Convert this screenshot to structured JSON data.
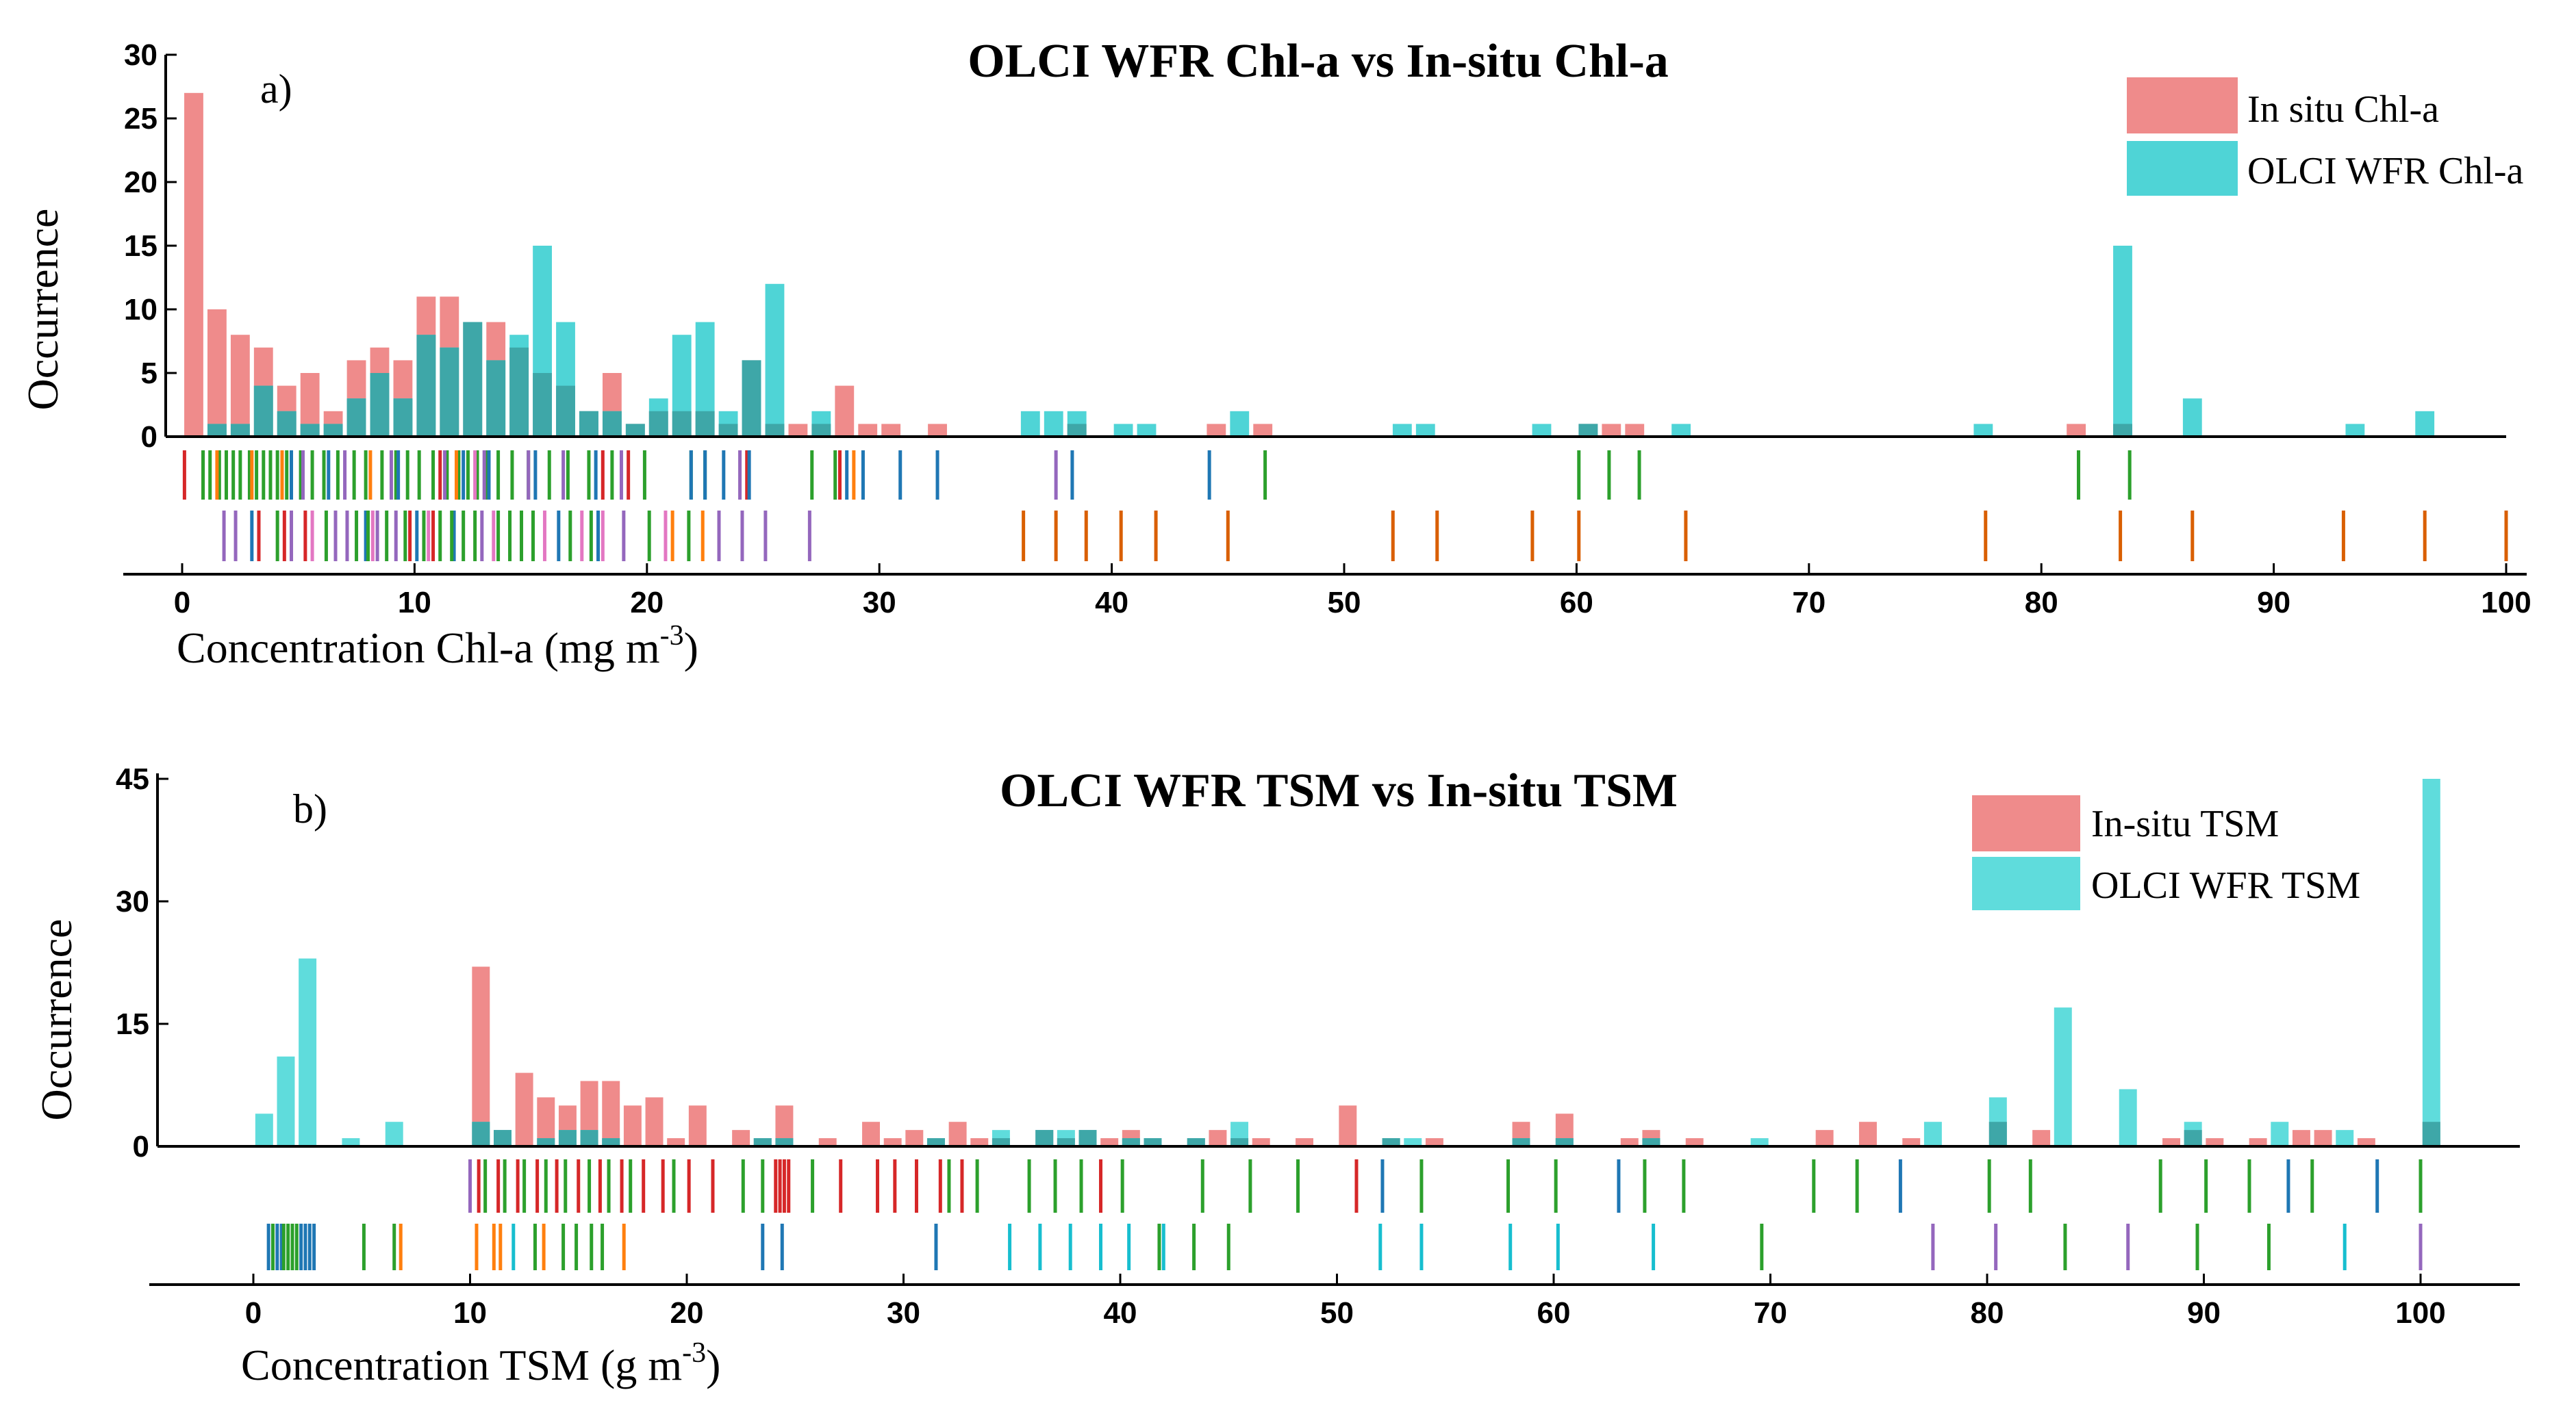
{
  "chart_data": [
    {
      "type": "bar",
      "panel": "a)",
      "title": "OLCI WFR Chl-a vs In-situ Chl-a",
      "xlabel_main": "Concentration Chl-a (mg m",
      "xlabel_sup": "-3",
      "xlabel_end": ")",
      "ylabel": "Occurrence",
      "xlim": [
        0,
        100
      ],
      "ylim": [
        0,
        30
      ],
      "xticks": [
        "0",
        "10",
        "20",
        "30",
        "40",
        "50",
        "60",
        "70",
        "80",
        "90",
        "100"
      ],
      "yticks": [
        "0",
        "5",
        "10",
        "15",
        "20",
        "25",
        "30"
      ],
      "legend_position": "top-right",
      "colors": {
        "in_situ": "#ef8b8b",
        "olci": "#4fd4d6",
        "overlap": "#3ea7a8"
      },
      "series": [
        {
          "name": "In situ Chl-a",
          "color": "#ef8b8b",
          "values": [
            [
              0.5,
              27
            ],
            [
              1.5,
              10
            ],
            [
              2.5,
              8
            ],
            [
              3.5,
              7
            ],
            [
              4.5,
              4
            ],
            [
              5.5,
              5
            ],
            [
              6.5,
              2
            ],
            [
              7.5,
              6
            ],
            [
              8.5,
              7
            ],
            [
              9.5,
              6
            ],
            [
              10.5,
              11
            ],
            [
              11.5,
              11
            ],
            [
              12.5,
              9
            ],
            [
              13.5,
              9
            ],
            [
              14.5,
              7
            ],
            [
              15.5,
              5
            ],
            [
              16.5,
              4
            ],
            [
              17.5,
              2
            ],
            [
              18.5,
              5
            ],
            [
              19.5,
              1
            ],
            [
              20.5,
              2
            ],
            [
              21.5,
              2
            ],
            [
              22.5,
              2
            ],
            [
              23.5,
              1
            ],
            [
              24.5,
              6
            ],
            [
              25.5,
              1
            ],
            [
              26.5,
              1
            ],
            [
              27.5,
              1
            ],
            [
              28.5,
              4
            ],
            [
              29.5,
              1
            ],
            [
              30.5,
              1
            ],
            [
              32.5,
              1
            ],
            [
              38.5,
              1
            ],
            [
              44.5,
              1
            ],
            [
              46.5,
              1
            ],
            [
              60.5,
              1
            ],
            [
              61.5,
              1
            ],
            [
              62.5,
              1
            ],
            [
              81.5,
              1
            ],
            [
              83.5,
              1
            ]
          ]
        },
        {
          "name": "OLCI WFR Chl-a",
          "color": "#4fd4d6",
          "values": [
            [
              1.5,
              1
            ],
            [
              2.5,
              1
            ],
            [
              3.5,
              4
            ],
            [
              4.5,
              2
            ],
            [
              5.5,
              1
            ],
            [
              6.5,
              1
            ],
            [
              7.5,
              3
            ],
            [
              8.5,
              5
            ],
            [
              9.5,
              3
            ],
            [
              10.5,
              8
            ],
            [
              11.5,
              7
            ],
            [
              12.5,
              9
            ],
            [
              13.5,
              6
            ],
            [
              14.5,
              8
            ],
            [
              15.5,
              15
            ],
            [
              16.5,
              9
            ],
            [
              17.5,
              2
            ],
            [
              18.5,
              2
            ],
            [
              19.5,
              1
            ],
            [
              20.5,
              3
            ],
            [
              21.5,
              8
            ],
            [
              22.5,
              9
            ],
            [
              23.5,
              2
            ],
            [
              24.5,
              6
            ],
            [
              25.5,
              12
            ],
            [
              27.5,
              2
            ],
            [
              36.5,
              2
            ],
            [
              37.5,
              2
            ],
            [
              38.5,
              2
            ],
            [
              40.5,
              1
            ],
            [
              41.5,
              1
            ],
            [
              45.5,
              2
            ],
            [
              52.5,
              1
            ],
            [
              53.5,
              1
            ],
            [
              58.5,
              1
            ],
            [
              60.5,
              1
            ],
            [
              64.5,
              1
            ],
            [
              77.5,
              1
            ],
            [
              83.5,
              15
            ],
            [
              86.5,
              3
            ],
            [
              93.5,
              1
            ],
            [
              96.5,
              2
            ]
          ]
        }
      ],
      "rug_row1": [
        {
          "color": "#d62728",
          "x": [
            0.1,
            0.9,
            11.1,
            18.1,
            19.2,
            24.3,
            28.3
          ]
        },
        {
          "color": "#2ca02c",
          "x": [
            0.9,
            1.2,
            1.6,
            1.9,
            2.2,
            2.5,
            2.9,
            3.2,
            3.5,
            3.8,
            4.1,
            4.5,
            5.1,
            5.6,
            6.1,
            6.7,
            7.4,
            7.9,
            8.6,
            9.2,
            9.7,
            10.2,
            10.8,
            11.4,
            11.9,
            12.3,
            12.7,
            13.1,
            13.6,
            14.2,
            14.9,
            15.8,
            16.6,
            17.5,
            18.5,
            19.9,
            21.9,
            22.5,
            27.1,
            28.1,
            46.6,
            60.1,
            61.4,
            62.7,
            81.6,
            83.8
          ]
        },
        {
          "color": "#ff7f0e",
          "x": [
            1.5,
            3.0,
            4.3,
            8.1,
            11.8,
            28.9
          ]
        },
        {
          "color": "#1f77b4",
          "x": [
            4.7,
            6.3,
            9.3,
            12.1,
            13.2,
            15.2,
            17.8,
            21.9,
            22.5,
            23.3,
            24.4,
            28.6,
            29.3,
            30.9,
            32.5,
            38.3,
            44.2
          ]
        },
        {
          "color": "#9467bd",
          "x": [
            5.2,
            7.0,
            9.0,
            11.3,
            13.0,
            14.9,
            16.4,
            18.9,
            24.0,
            37.6
          ]
        },
        {
          "color": "#e377c2",
          "x": [
            12.6
          ]
        }
      ],
      "rug_row2": [
        {
          "color": "#9467bd",
          "x": [
            1.8,
            2.3,
            3.3,
            4.7,
            6.6,
            7.1,
            8.4,
            9.2,
            12.9,
            19.0,
            23.1,
            24.1,
            25.1,
            27.0
          ]
        },
        {
          "color": "#1f77b4",
          "x": [
            3.0,
            7.9,
            10.1,
            11.7,
            16.2,
            17.9
          ]
        },
        {
          "color": "#d62728",
          "x": [
            3.3,
            4.4,
            5.3,
            9.8,
            10.8
          ]
        },
        {
          "color": "#2ca02c",
          "x": [
            4.1,
            6.2,
            7.5,
            8.0,
            8.8,
            9.6,
            10.4,
            11.1,
            11.6,
            12.1,
            12.6,
            13.6,
            14.1,
            14.6,
            15.1,
            16.7,
            17.6,
            20.1,
            21.8
          ]
        },
        {
          "color": "#e377c2",
          "x": [
            5.6,
            8.2,
            10.6,
            13.4,
            15.6,
            17.2,
            18.1,
            20.8
          ]
        },
        {
          "color": "#ff7f0e",
          "x": [
            21.1,
            22.4
          ]
        },
        {
          "color": "#d95f02",
          "x": [
            36.2,
            37.6,
            38.9,
            40.4,
            41.9,
            45.0,
            52.1,
            54.0,
            58.1,
            60.1,
            64.7,
            77.6,
            83.4,
            86.5,
            93.0,
            96.5,
            100.0
          ]
        }
      ]
    },
    {
      "type": "bar",
      "panel": "b)",
      "title": "OLCI WFR TSM vs In-situ TSM",
      "xlabel_main": "Concentration TSM (g m",
      "xlabel_sup": "-3",
      "xlabel_end": ")",
      "ylabel": "Occurrence",
      "xlim": [
        0,
        100
      ],
      "ylim": [
        0,
        45
      ],
      "xticks": [
        "0",
        "10",
        "20",
        "30",
        "40",
        "50",
        "60",
        "70",
        "80",
        "90",
        "100"
      ],
      "yticks": [
        "0",
        "15",
        "30",
        "45"
      ],
      "legend_position": "top-right",
      "colors": {
        "in_situ": "#ef8b8b",
        "olci": "#5fdcdc",
        "overlap": "#3ea7a8"
      },
      "series": [
        {
          "name": "In-situ TSM",
          "color": "#ef8b8b",
          "values": [
            [
              10.5,
              22
            ],
            [
              11.5,
              2
            ],
            [
              12.5,
              9
            ],
            [
              13.5,
              6
            ],
            [
              14.5,
              5
            ],
            [
              15.5,
              8
            ],
            [
              16.5,
              8
            ],
            [
              17.5,
              5
            ],
            [
              18.5,
              6
            ],
            [
              19.5,
              1
            ],
            [
              20.5,
              5
            ],
            [
              22.5,
              2
            ],
            [
              23.5,
              1
            ],
            [
              24.5,
              5
            ],
            [
              26.5,
              1
            ],
            [
              28.5,
              3
            ],
            [
              29.5,
              1
            ],
            [
              30.5,
              2
            ],
            [
              31.5,
              1
            ],
            [
              32.5,
              3
            ],
            [
              33.5,
              1
            ],
            [
              34.5,
              1
            ],
            [
              36.5,
              2
            ],
            [
              37.5,
              1
            ],
            [
              38.5,
              2
            ],
            [
              39.5,
              1
            ],
            [
              40.5,
              2
            ],
            [
              41.5,
              1
            ],
            [
              43.5,
              1
            ],
            [
              44.5,
              2
            ],
            [
              45.5,
              1
            ],
            [
              46.5,
              1
            ],
            [
              48.5,
              1
            ],
            [
              50.5,
              5
            ],
            [
              52.5,
              1
            ],
            [
              54.5,
              1
            ],
            [
              58.5,
              3
            ],
            [
              60.5,
              4
            ],
            [
              63.5,
              1
            ],
            [
              64.5,
              2
            ],
            [
              66.5,
              1
            ],
            [
              72.5,
              2
            ],
            [
              74.5,
              3
            ],
            [
              76.5,
              1
            ],
            [
              80.5,
              3
            ],
            [
              82.5,
              2
            ],
            [
              88.5,
              1
            ],
            [
              89.5,
              2
            ],
            [
              90.5,
              1
            ],
            [
              92.5,
              1
            ],
            [
              94.5,
              2
            ],
            [
              95.5,
              2
            ],
            [
              97.5,
              1
            ],
            [
              100.5,
              3
            ]
          ]
        },
        {
          "name": "OLCI WFR TSM",
          "color": "#5fdcdc",
          "values": [
            [
              0.5,
              4
            ],
            [
              1.5,
              11
            ],
            [
              2.5,
              23
            ],
            [
              4.5,
              1
            ],
            [
              6.5,
              3
            ],
            [
              10.5,
              3
            ],
            [
              11.5,
              2
            ],
            [
              13.5,
              1
            ],
            [
              14.5,
              2
            ],
            [
              15.5,
              2
            ],
            [
              16.5,
              1
            ],
            [
              23.5,
              1
            ],
            [
              24.5,
              1
            ],
            [
              31.5,
              1
            ],
            [
              34.5,
              2
            ],
            [
              36.5,
              2
            ],
            [
              37.5,
              2
            ],
            [
              38.5,
              2
            ],
            [
              40.5,
              1
            ],
            [
              41.5,
              1
            ],
            [
              43.5,
              1
            ],
            [
              45.5,
              3
            ],
            [
              52.5,
              1
            ],
            [
              53.5,
              1
            ],
            [
              58.5,
              1
            ],
            [
              60.5,
              1
            ],
            [
              64.5,
              1
            ],
            [
              69.5,
              1
            ],
            [
              77.5,
              3
            ],
            [
              80.5,
              6
            ],
            [
              83.5,
              17
            ],
            [
              86.5,
              7
            ],
            [
              89.5,
              3
            ],
            [
              93.5,
              3
            ],
            [
              96.5,
              2
            ],
            [
              100.5,
              45
            ]
          ]
        }
      ],
      "rug_row1": [
        {
          "color": "#9467bd",
          "x": [
            10.0
          ]
        },
        {
          "color": "#d62728",
          "x": [
            10.4,
            11.3,
            12.2,
            13.1,
            14.0,
            15.0,
            16.0,
            17.0,
            18.0,
            18.9,
            20.1,
            21.2,
            24.1,
            24.3,
            24.5,
            24.7,
            27.1,
            28.8,
            29.6,
            30.6,
            31.7,
            32.7,
            39.1,
            50.9
          ]
        },
        {
          "color": "#2ca02c",
          "x": [
            10.7,
            11.6,
            12.5,
            13.5,
            14.4,
            15.5,
            16.4,
            17.4,
            19.4,
            22.6,
            23.5,
            25.8,
            32.1,
            33.4,
            35.8,
            37.0,
            38.2,
            40.1,
            43.8,
            46.0,
            48.2,
            53.9,
            57.9,
            60.1,
            64.2,
            66.0,
            72.0,
            74.0,
            80.1,
            82.0,
            88.0,
            90.1,
            92.1,
            95.0,
            100.0
          ]
        },
        {
          "color": "#1f77b4",
          "x": [
            52.1,
            63.0,
            76.0,
            93.9,
            98.0
          ]
        }
      ],
      "rug_row2": [
        {
          "color": "#1f77b4",
          "x": [
            0.7,
            1.1,
            1.3,
            2.2,
            2.4,
            2.6,
            2.8,
            23.5,
            24.4,
            31.5
          ]
        },
        {
          "color": "#2ca02c",
          "x": [
            0.9,
            1.4,
            1.6,
            1.8,
            2.0,
            5.1,
            6.5,
            13.0,
            14.3,
            14.9,
            15.6,
            16.1,
            41.8,
            43.4,
            45.0,
            69.6,
            83.6,
            89.7,
            93.0
          ]
        },
        {
          "color": "#ff7f0e",
          "x": [
            6.8,
            10.3,
            11.1,
            11.4,
            13.4,
            17.1
          ]
        },
        {
          "color": "#17becf",
          "x": [
            12.0,
            34.9,
            36.3,
            37.7,
            39.1,
            40.4,
            42.0,
            52.0,
            53.9,
            58.0,
            60.2,
            64.6,
            96.5
          ]
        },
        {
          "color": "#9467bd",
          "x": [
            77.5,
            80.4,
            86.5,
            100.0
          ]
        }
      ]
    }
  ]
}
